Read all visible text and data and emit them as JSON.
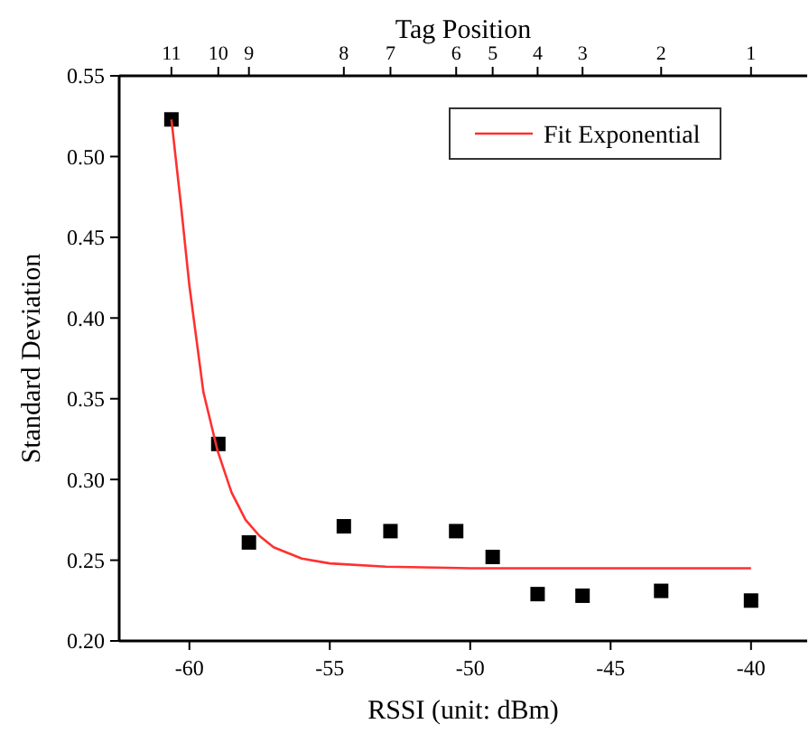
{
  "chart_data": {
    "type": "scatter",
    "xlabel": "RSSI (unit: dBm)",
    "ylabel": "Standard Deviation",
    "x2label": "Tag Position",
    "xlim": [
      -62.5,
      -38
    ],
    "xticks": [
      -60,
      -55,
      -50,
      -45,
      -40
    ],
    "annotations": [
      "11",
      "10",
      "9",
      "8",
      "7",
      "6",
      "5",
      "4",
      "3",
      "2",
      "1"
    ],
    "ylim": [
      0.2,
      0.55
    ],
    "yticks": [
      {
        "value": 0.2,
        "label": "0.20"
      },
      {
        "value": 0.25,
        "label": "0.25"
      },
      {
        "value": 0.3,
        "label": "0.30"
      },
      {
        "value": 0.35,
        "label": "0.35"
      },
      {
        "value": 0.4,
        "label": "0.40"
      },
      {
        "value": 0.45,
        "label": "0.45"
      },
      {
        "value": 0.5,
        "label": "0.50"
      },
      {
        "value": 0.55,
        "label": "0.55"
      }
    ],
    "grid": false,
    "legend": "top right",
    "series": [
      {
        "color": "#000000",
        "marker": "square",
        "x": [
          -60.64,
          -58.97,
          -57.88,
          -54.5,
          -52.84,
          -50.5,
          -49.2,
          -47.6,
          -46.0,
          -43.2,
          -40.0
        ],
        "values": [
          0.523,
          0.322,
          0.261,
          0.271,
          0.268,
          0.268,
          0.252,
          0.229,
          0.228,
          0.231,
          0.225
        ]
      },
      {
        "type": "line",
        "name": "Fit Exponential",
        "color": "#ff3030",
        "marker": "none",
        "line_style": "solid",
        "x": [
          -60.64,
          -60.3,
          -60,
          -59.5,
          -59,
          -58.5,
          -58,
          -57.5,
          -57,
          -56,
          -55,
          -53,
          -50,
          -45,
          -40
        ],
        "values": [
          0.523,
          0.47,
          0.42,
          0.354,
          0.318,
          0.292,
          0.275,
          0.265,
          0.258,
          0.251,
          0.248,
          0.246,
          0.245,
          0.245,
          0.245
        ]
      }
    ]
  }
}
